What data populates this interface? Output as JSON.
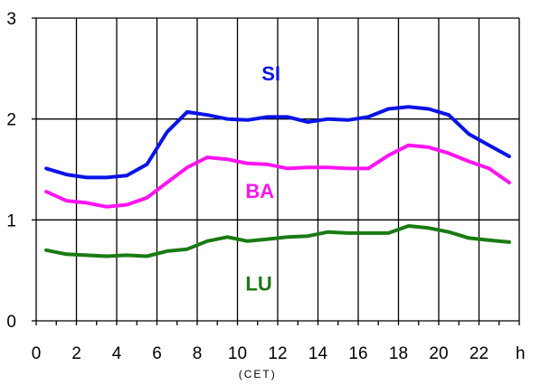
{
  "chart_data": {
    "type": "line",
    "title": "",
    "xlabel": "(CET)",
    "x_unit": "h",
    "ylabel": "",
    "xlim": [
      0,
      24
    ],
    "ylim": [
      0,
      3
    ],
    "x_ticks": [
      0,
      2,
      4,
      6,
      8,
      10,
      12,
      14,
      16,
      18,
      20,
      22
    ],
    "y_ticks": [
      0,
      1,
      2,
      3
    ],
    "grid": true,
    "legend": "inline labels",
    "x": [
      0.5,
      1.5,
      2.5,
      3.5,
      4.5,
      5.5,
      6.5,
      7.5,
      8.5,
      9.5,
      10.5,
      11.5,
      12.5,
      13.5,
      14.5,
      15.5,
      16.5,
      17.5,
      18.5,
      19.5,
      20.5,
      21.5,
      22.5,
      23.5
    ],
    "series": [
      {
        "name": "SI",
        "color": "#0a14e6",
        "values": [
          1.51,
          1.45,
          1.42,
          1.42,
          1.44,
          1.55,
          1.87,
          2.07,
          2.04,
          2.0,
          1.99,
          2.02,
          2.02,
          1.97,
          2.0,
          1.99,
          2.02,
          2.1,
          2.12,
          2.1,
          2.04,
          1.85,
          1.74,
          1.63
        ]
      },
      {
        "name": "BA",
        "color": "#ff14f0",
        "values": [
          1.28,
          1.19,
          1.17,
          1.13,
          1.15,
          1.22,
          1.37,
          1.52,
          1.62,
          1.6,
          1.56,
          1.55,
          1.51,
          1.52,
          1.52,
          1.51,
          1.51,
          1.64,
          1.74,
          1.72,
          1.66,
          1.58,
          1.51,
          1.37
        ]
      },
      {
        "name": "LU",
        "color": "#1a7a12",
        "values": [
          0.7,
          0.66,
          0.65,
          0.64,
          0.65,
          0.64,
          0.69,
          0.71,
          0.79,
          0.83,
          0.79,
          0.81,
          0.83,
          0.84,
          0.88,
          0.87,
          0.87,
          0.87,
          0.94,
          0.92,
          0.88,
          0.82,
          0.8,
          0.78
        ]
      }
    ]
  }
}
